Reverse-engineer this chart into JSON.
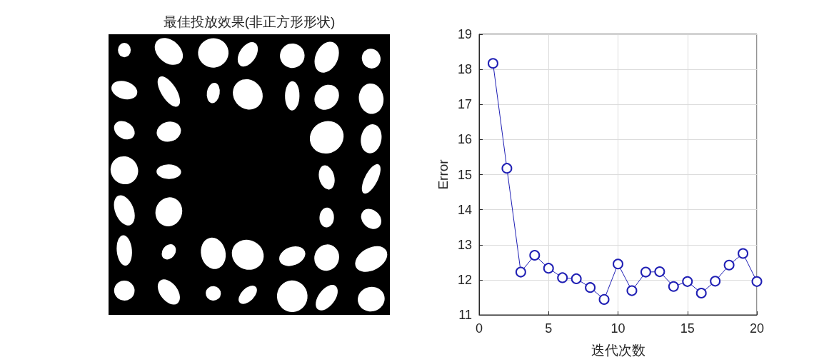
{
  "chart_data": [
    {
      "type": "other",
      "title": "最佳投放效果(非正方形形状)"
    },
    {
      "type": "line",
      "xlabel": "迭代次数",
      "ylabel": "Error",
      "x": [
        1,
        2,
        3,
        4,
        5,
        6,
        7,
        8,
        9,
        10,
        11,
        12,
        13,
        14,
        15,
        16,
        17,
        18,
        19,
        20
      ],
      "series": [
        {
          "color": "#1f1fb4",
          "values": [
            18.17,
            15.18,
            12.22,
            12.7,
            12.33,
            12.06,
            12.03,
            11.78,
            11.44,
            12.45,
            11.69,
            12.22,
            12.23,
            11.81,
            11.95,
            11.62,
            11.96,
            12.42,
            12.75,
            11.95
          ]
        }
      ],
      "xlim": [
        0,
        20
      ],
      "xticks": [
        0,
        5,
        10,
        15,
        20
      ],
      "ylim": [
        11,
        19
      ],
      "yticks": [
        11,
        12,
        13,
        14,
        15,
        16,
        17,
        18,
        19
      ],
      "grid": true,
      "marker": "circle",
      "line_style": "solid"
    }
  ]
}
